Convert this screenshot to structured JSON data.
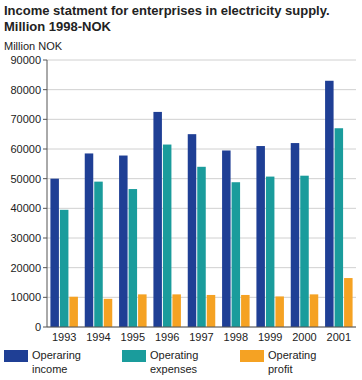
{
  "chart_data": {
    "type": "bar",
    "title": "Income statment for enterprises in electricity supply.",
    "subtitle": "Million 1998-NOK",
    "y_label": "Million NOK",
    "categories": [
      "1993",
      "1994",
      "1995",
      "1996",
      "1997",
      "1998",
      "1999",
      "2000",
      "2001"
    ],
    "series": [
      {
        "name": "Operaring income",
        "color": "#1f3f95",
        "values": [
          50000,
          58500,
          57800,
          72500,
          65000,
          59500,
          61000,
          62000,
          83000
        ]
      },
      {
        "name": "Operating expenses",
        "color": "#1a9c9c",
        "values": [
          39500,
          49000,
          46500,
          61500,
          54000,
          48800,
          50700,
          51000,
          67000
        ]
      },
      {
        "name": "Operating profit",
        "color": "#f5a223",
        "values": [
          10200,
          9500,
          11000,
          11000,
          10800,
          10800,
          10300,
          11000,
          16500
        ]
      }
    ],
    "ylim": [
      0,
      90000
    ],
    "yticks": [
      0,
      10000,
      20000,
      30000,
      40000,
      50000,
      60000,
      70000,
      80000,
      90000
    ],
    "grid": true,
    "legend": "bottom"
  }
}
